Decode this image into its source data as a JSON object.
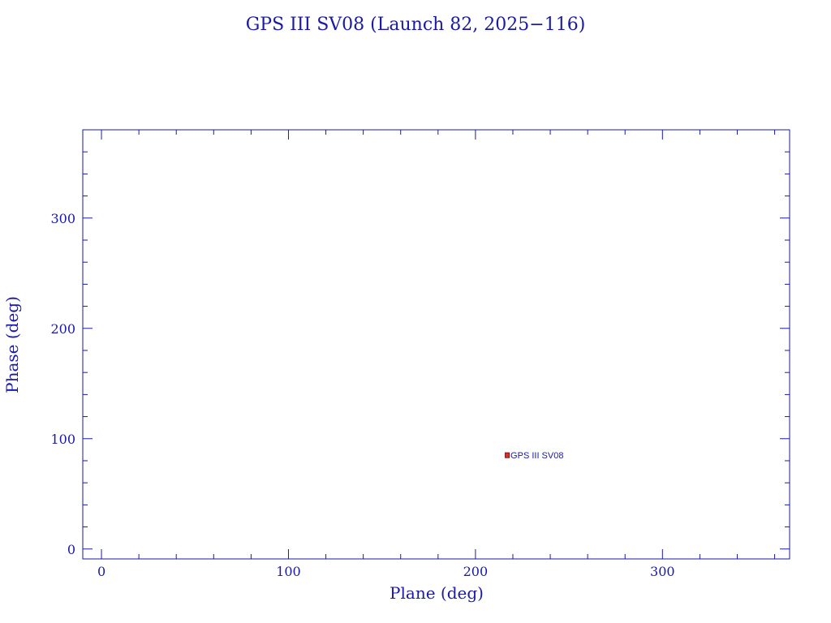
{
  "chart_data": {
    "type": "scatter",
    "title": "GPS III SV08 (Launch 82, 2025−116)",
    "xlabel": "Plane (deg)",
    "ylabel": "Phase (deg)",
    "xlim": [
      -10,
      368
    ],
    "ylim": [
      -9,
      380
    ],
    "x_ticks": [
      0,
      100,
      200,
      300
    ],
    "y_ticks": [
      0,
      100,
      200,
      300
    ],
    "x_minor_step": 20,
    "y_minor_step": 20,
    "grid": false,
    "points": [
      {
        "x": 217,
        "y": 85,
        "label": "GPS III SV08"
      }
    ],
    "colors": {
      "axis": "#1a1aa6",
      "marker_fill": "#d93030",
      "marker_stroke": "#8a1010"
    }
  }
}
